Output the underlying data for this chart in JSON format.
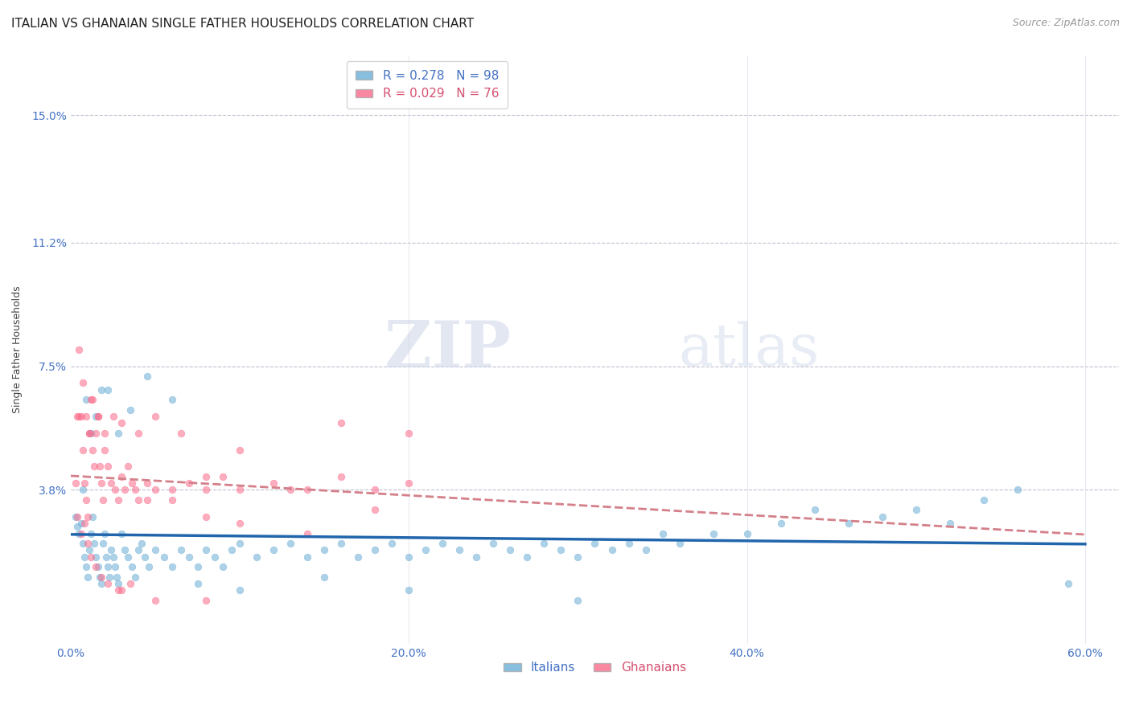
{
  "title": "ITALIAN VS GHANAIAN SINGLE FATHER HOUSEHOLDS CORRELATION CHART",
  "source": "Source: ZipAtlas.com",
  "ylabel": "Single Father Households",
  "xlabel_ticks": [
    "0.0%",
    "20.0%",
    "40.0%",
    "60.0%"
  ],
  "xlabel_tick_vals": [
    0.0,
    0.2,
    0.4,
    0.6
  ],
  "ytick_labels": [
    "3.8%",
    "7.5%",
    "11.2%",
    "15.0%"
  ],
  "ytick_vals": [
    0.038,
    0.075,
    0.112,
    0.15
  ],
  "xlim": [
    0.0,
    0.62
  ],
  "ylim": [
    -0.008,
    0.168
  ],
  "italian_R": 0.278,
  "italian_N": 98,
  "ghanaian_R": 0.029,
  "ghanaian_N": 76,
  "italian_color": "#6baed6",
  "ghanaian_color": "#fb6a8a",
  "trendline_italian_color": "#2166ac",
  "trendline_ghanaian_color": "#d4808a",
  "watermark_zip": "ZIP",
  "watermark_atlas": "atlas",
  "background_color": "#ffffff",
  "title_fontsize": 11,
  "source_fontsize": 9,
  "legend_fontsize": 11,
  "axis_label_fontsize": 9,
  "tick_fontsize": 10,
  "scatter_size": 38,
  "scatter_alpha": 0.55,
  "italian_x": [
    0.003,
    0.004,
    0.005,
    0.006,
    0.007,
    0.008,
    0.009,
    0.01,
    0.011,
    0.012,
    0.013,
    0.014,
    0.015,
    0.016,
    0.017,
    0.018,
    0.019,
    0.02,
    0.021,
    0.022,
    0.023,
    0.024,
    0.025,
    0.026,
    0.027,
    0.028,
    0.03,
    0.032,
    0.034,
    0.036,
    0.038,
    0.04,
    0.042,
    0.044,
    0.046,
    0.05,
    0.055,
    0.06,
    0.065,
    0.07,
    0.075,
    0.08,
    0.085,
    0.09,
    0.095,
    0.1,
    0.11,
    0.12,
    0.13,
    0.14,
    0.15,
    0.16,
    0.17,
    0.18,
    0.19,
    0.2,
    0.21,
    0.22,
    0.23,
    0.24,
    0.25,
    0.26,
    0.27,
    0.28,
    0.29,
    0.3,
    0.31,
    0.32,
    0.33,
    0.34,
    0.35,
    0.36,
    0.38,
    0.4,
    0.42,
    0.44,
    0.46,
    0.48,
    0.5,
    0.52,
    0.54,
    0.56,
    0.007,
    0.009,
    0.012,
    0.015,
    0.018,
    0.022,
    0.028,
    0.035,
    0.045,
    0.06,
    0.075,
    0.1,
    0.15,
    0.2,
    0.3,
    0.59
  ],
  "italian_y": [
    0.03,
    0.027,
    0.025,
    0.028,
    0.022,
    0.018,
    0.015,
    0.012,
    0.02,
    0.025,
    0.03,
    0.022,
    0.018,
    0.015,
    0.012,
    0.01,
    0.022,
    0.025,
    0.018,
    0.015,
    0.012,
    0.02,
    0.018,
    0.015,
    0.012,
    0.01,
    0.025,
    0.02,
    0.018,
    0.015,
    0.012,
    0.02,
    0.022,
    0.018,
    0.015,
    0.02,
    0.018,
    0.015,
    0.02,
    0.018,
    0.015,
    0.02,
    0.018,
    0.015,
    0.02,
    0.022,
    0.018,
    0.02,
    0.022,
    0.018,
    0.02,
    0.022,
    0.018,
    0.02,
    0.022,
    0.018,
    0.02,
    0.022,
    0.02,
    0.018,
    0.022,
    0.02,
    0.018,
    0.022,
    0.02,
    0.018,
    0.022,
    0.02,
    0.022,
    0.02,
    0.025,
    0.022,
    0.025,
    0.025,
    0.028,
    0.032,
    0.028,
    0.03,
    0.032,
    0.028,
    0.035,
    0.038,
    0.038,
    0.065,
    0.055,
    0.06,
    0.068,
    0.068,
    0.055,
    0.062,
    0.072,
    0.065,
    0.01,
    0.008,
    0.012,
    0.008,
    0.005,
    0.01
  ],
  "ghanaian_x": [
    0.003,
    0.004,
    0.005,
    0.006,
    0.007,
    0.008,
    0.009,
    0.01,
    0.011,
    0.012,
    0.013,
    0.014,
    0.015,
    0.016,
    0.017,
    0.018,
    0.019,
    0.02,
    0.022,
    0.024,
    0.026,
    0.028,
    0.03,
    0.032,
    0.034,
    0.036,
    0.038,
    0.04,
    0.045,
    0.05,
    0.06,
    0.07,
    0.08,
    0.09,
    0.1,
    0.12,
    0.14,
    0.16,
    0.18,
    0.2,
    0.004,
    0.006,
    0.008,
    0.01,
    0.012,
    0.015,
    0.018,
    0.022,
    0.028,
    0.035,
    0.045,
    0.06,
    0.08,
    0.1,
    0.14,
    0.18,
    0.005,
    0.007,
    0.009,
    0.011,
    0.013,
    0.016,
    0.02,
    0.025,
    0.03,
    0.04,
    0.05,
    0.065,
    0.08,
    0.1,
    0.13,
    0.16,
    0.2,
    0.03,
    0.05,
    0.08
  ],
  "ghanaian_y": [
    0.04,
    0.06,
    0.08,
    0.06,
    0.05,
    0.04,
    0.035,
    0.03,
    0.055,
    0.065,
    0.05,
    0.045,
    0.055,
    0.06,
    0.045,
    0.04,
    0.035,
    0.05,
    0.045,
    0.04,
    0.038,
    0.035,
    0.042,
    0.038,
    0.045,
    0.04,
    0.038,
    0.035,
    0.04,
    0.038,
    0.035,
    0.04,
    0.038,
    0.042,
    0.038,
    0.04,
    0.038,
    0.042,
    0.038,
    0.04,
    0.03,
    0.025,
    0.028,
    0.022,
    0.018,
    0.015,
    0.012,
    0.01,
    0.008,
    0.01,
    0.035,
    0.038,
    0.03,
    0.028,
    0.025,
    0.032,
    0.06,
    0.07,
    0.06,
    0.055,
    0.065,
    0.06,
    0.055,
    0.06,
    0.058,
    0.055,
    0.06,
    0.055,
    0.042,
    0.05,
    0.038,
    0.058,
    0.055,
    0.008,
    0.005,
    0.005
  ],
  "italian_trendline_x": [
    0.0,
    0.6
  ],
  "italian_trendline_y": [
    0.02,
    0.038
  ],
  "ghanaian_trendline_x": [
    0.0,
    0.6
  ],
  "ghanaian_trendline_y": [
    0.036,
    0.04
  ]
}
